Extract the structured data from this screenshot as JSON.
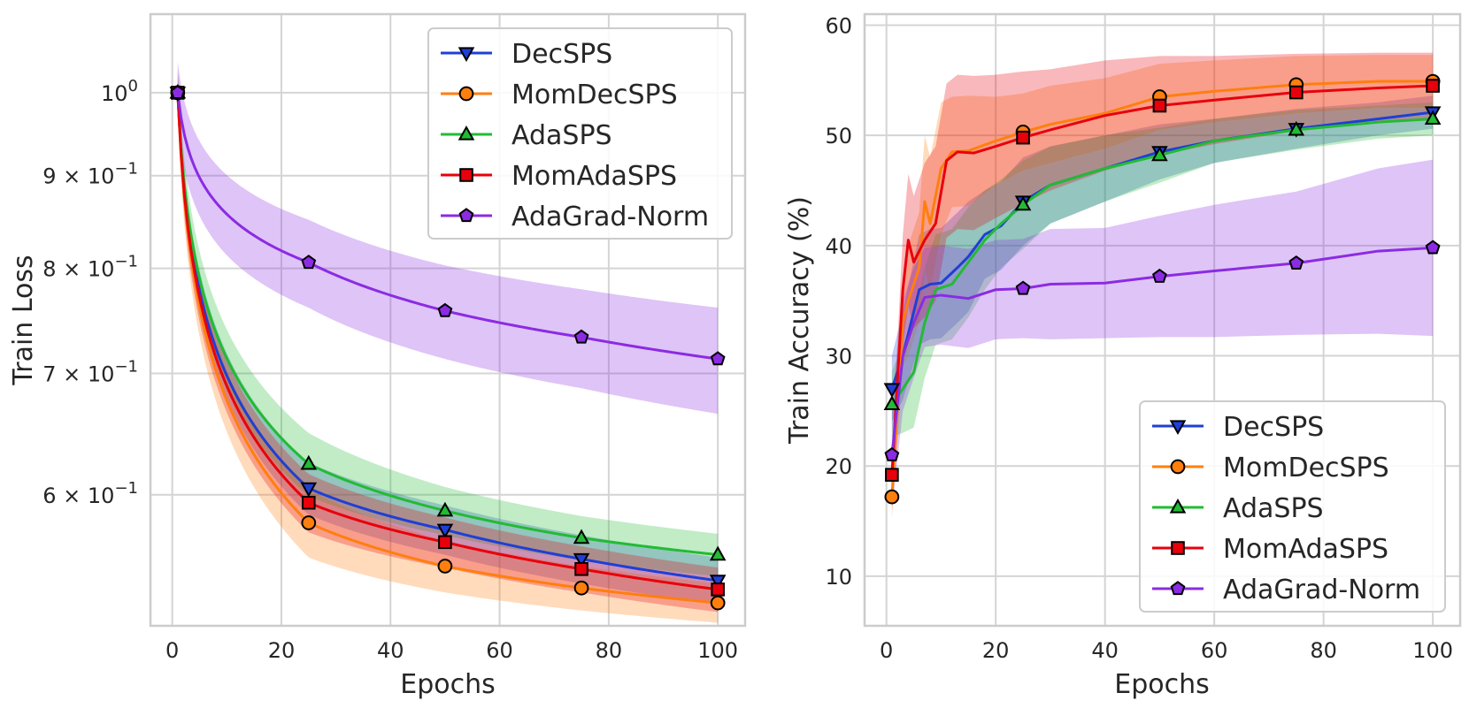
{
  "chart_data": [
    {
      "type": "line",
      "panel": "left",
      "xlabel": "Epochs",
      "ylabel": "Train Loss",
      "yscale": "log",
      "xlim": [
        -4,
        105
      ],
      "ylim": [
        0.508,
        1.105
      ],
      "x_ticks": [
        0,
        20,
        40,
        60,
        80,
        100
      ],
      "y_ticks": [
        {
          "value": 1.0,
          "base": "10",
          "exp": "0"
        },
        {
          "value": 0.9,
          "base": "9 × 10",
          "exp": "−1"
        },
        {
          "value": 0.8,
          "base": "8 × 10",
          "exp": "−1"
        },
        {
          "value": 0.7,
          "base": "7 × 10",
          "exp": "−1"
        },
        {
          "value": 0.6,
          "base": "6 × 10",
          "exp": "−1"
        }
      ],
      "legend_position": "top-right",
      "series": [
        {
          "name": "DecSPS",
          "color": "#1f3fd6",
          "marker": "triangle-down",
          "x": [
            1,
            25,
            50,
            75,
            100
          ],
          "y": [
            1.0,
            0.605,
            0.574,
            0.553,
            0.538
          ],
          "band": [
            0.02,
            0.02,
            0.018,
            0.017,
            0.016
          ]
        },
        {
          "name": "MomDecSPS",
          "color": "#ff7f0e",
          "marker": "circle",
          "x": [
            1,
            25,
            50,
            75,
            100
          ],
          "y": [
            1.0,
            0.579,
            0.548,
            0.533,
            0.523
          ],
          "band": [
            0.03,
            0.025,
            0.018,
            0.015,
            0.013
          ]
        },
        {
          "name": "AdaSPS",
          "color": "#22bb33",
          "marker": "triangle-up",
          "x": [
            1,
            25,
            50,
            75,
            100
          ],
          "y": [
            1.0,
            0.624,
            0.588,
            0.568,
            0.556
          ],
          "band": [
            0.03,
            0.025,
            0.018,
            0.016,
            0.015
          ]
        },
        {
          "name": "MomAdaSPS",
          "color": "#e8000b",
          "marker": "square",
          "x": [
            1,
            25,
            50,
            75,
            100
          ],
          "y": [
            1.0,
            0.594,
            0.565,
            0.546,
            0.532
          ],
          "band": [
            0.025,
            0.022,
            0.018,
            0.016,
            0.015
          ]
        },
        {
          "name": "AdaGrad-Norm",
          "color": "#8b2be2",
          "marker": "pentagon",
          "x": [
            1,
            25,
            50,
            75,
            100
          ],
          "y": [
            1.0,
            0.806,
            0.758,
            0.733,
            0.713
          ],
          "band": [
            0.04,
            0.045,
            0.045,
            0.046,
            0.048
          ]
        }
      ]
    },
    {
      "type": "line",
      "panel": "right",
      "xlabel": "Epochs",
      "ylabel": "Train Accuracy (%)",
      "xlim": [
        -4,
        105
      ],
      "ylim": [
        5.5,
        61
      ],
      "x_ticks": [
        0,
        20,
        40,
        60,
        80,
        100
      ],
      "y_ticks": [
        10,
        20,
        30,
        40,
        50,
        60
      ],
      "legend_position": "bottom-right",
      "series": [
        {
          "name": "DecSPS",
          "color": "#1f3fd6",
          "marker": "triangle-down",
          "x": [
            1,
            3,
            6,
            8,
            10,
            13,
            15,
            18,
            21,
            25,
            30,
            40,
            50,
            60,
            75,
            90,
            100
          ],
          "y": [
            27,
            30,
            36,
            36.5,
            36.6,
            38,
            39,
            41,
            41.8,
            44,
            45.5,
            47,
            48.5,
            49.5,
            50.6,
            51.5,
            52.1
          ],
          "band": [
            3,
            4,
            5,
            5,
            5,
            5,
            5,
            4,
            4,
            4,
            3.5,
            3,
            2.5,
            2,
            1.8,
            1.5,
            1.5
          ]
        },
        {
          "name": "MomDecSPS",
          "color": "#ff7f0e",
          "marker": "circle",
          "x": [
            1,
            3,
            4,
            6,
            7,
            8,
            10,
            12,
            15,
            20,
            25,
            30,
            40,
            50,
            60,
            75,
            90,
            100
          ],
          "y": [
            17.2,
            33,
            35,
            38,
            44,
            42,
            47,
            48.5,
            48.6,
            49.5,
            50.3,
            51,
            52,
            53.5,
            54,
            54.6,
            54.9,
            54.9
          ],
          "band": [
            2,
            4,
            5,
            5,
            6,
            6,
            6,
            5,
            5,
            4,
            3.5,
            3.5,
            3.2,
            3,
            2.8,
            2.6,
            2.4,
            2.4
          ]
        },
        {
          "name": "AdaSPS",
          "color": "#22bb33",
          "marker": "triangle-up",
          "x": [
            1,
            3,
            5,
            7,
            9,
            12,
            15,
            18,
            21,
            25,
            30,
            40,
            50,
            60,
            75,
            90,
            100
          ],
          "y": [
            25.6,
            27,
            28.5,
            33,
            36,
            36.5,
            38.5,
            40.5,
            42,
            43.7,
            45.5,
            47,
            48.2,
            49.5,
            50.5,
            51.2,
            51.5
          ],
          "band": [
            3,
            4,
            5,
            5,
            5,
            5,
            5,
            4.5,
            4,
            4,
            3.5,
            3,
            2.5,
            2,
            1.8,
            1.5,
            1.5
          ]
        },
        {
          "name": "MomAdaSPS",
          "color": "#e8000b",
          "marker": "square",
          "x": [
            1,
            3,
            4,
            5,
            7,
            9,
            11,
            13,
            16,
            20,
            25,
            30,
            40,
            50,
            60,
            75,
            90,
            100
          ],
          "y": [
            19.2,
            36,
            40.5,
            38.5,
            40.5,
            42,
            47.7,
            48.5,
            48.4,
            49,
            49.8,
            50.5,
            51.8,
            52.7,
            53.2,
            53.9,
            54.3,
            54.5
          ],
          "band": [
            2,
            5,
            6,
            6,
            7,
            7,
            7,
            7,
            7,
            6.5,
            6,
            5.5,
            5,
            4.5,
            4,
            3.5,
            3.2,
            3
          ]
        },
        {
          "name": "AdaGrad-Norm",
          "color": "#8b2be2",
          "marker": "pentagon",
          "x": [
            1,
            3,
            5,
            7,
            10,
            15,
            20,
            25,
            30,
            40,
            50,
            60,
            75,
            90,
            100
          ],
          "y": [
            21,
            30,
            33,
            35.3,
            35.5,
            35.2,
            36,
            36.1,
            36.5,
            36.6,
            37.2,
            37.7,
            38.4,
            39.5,
            39.8
          ],
          "band": [
            5,
            5,
            5,
            4.5,
            4.5,
            4.5,
            4.5,
            4.5,
            5,
            5,
            5.5,
            6,
            6.5,
            7.5,
            8
          ]
        }
      ]
    }
  ]
}
